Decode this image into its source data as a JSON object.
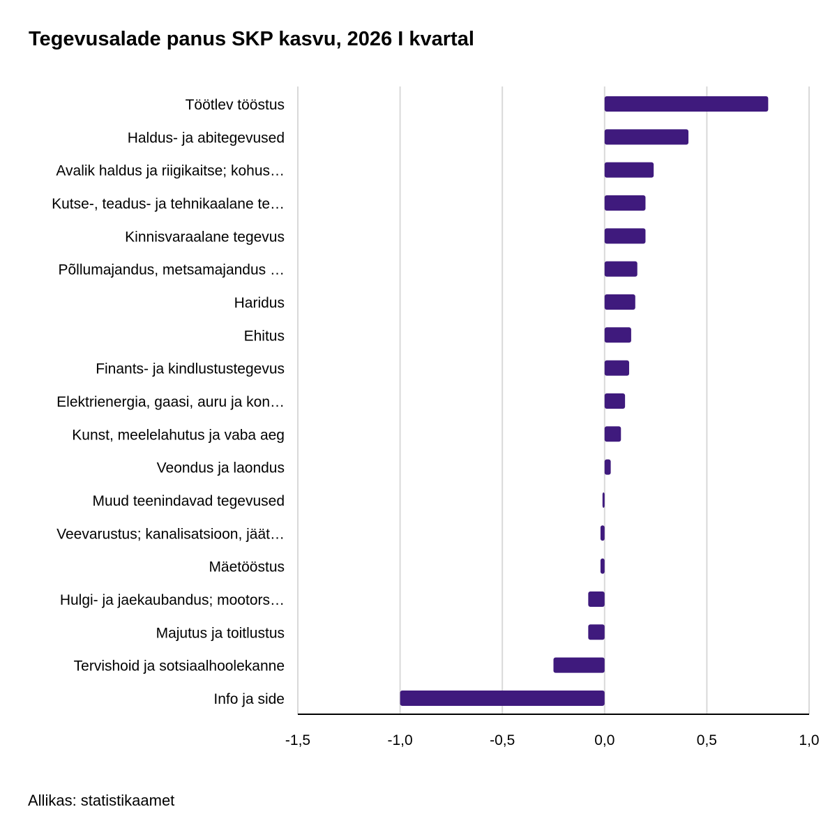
{
  "chart_data": {
    "type": "bar",
    "orientation": "horizontal",
    "title": "Tegevusalade panus SKP kasvu, 2026 I kvartal",
    "source": "Allikas: statistikaamet",
    "categories": [
      "Töötlev tööstus",
      "Haldus- ja abitegevused",
      "Avalik haldus ja riigikaitse; kohus…",
      "Kutse-, teadus- ja tehnikaalane te…",
      "Kinnisvaraalane tegevus",
      "Põllumajandus, metsamajandus …",
      "Haridus",
      "Ehitus",
      "Finants- ja kindlustustegevus",
      "Elektrienergia, gaasi, auru ja kon…",
      "Kunst, meelelahutus ja vaba aeg",
      "Veondus ja laondus",
      "Muud teenindavad tegevused",
      "Veevarustus; kanalisatsioon, jäät…",
      "Mäetööstus",
      "Hulgi- ja jaekaubandus; mootors…",
      "Majutus ja toitlustus",
      "Tervishoid ja sotsiaalhoolekanne",
      "Info ja side"
    ],
    "values": [
      0.8,
      0.41,
      0.24,
      0.2,
      0.2,
      0.16,
      0.15,
      0.13,
      0.12,
      0.1,
      0.08,
      0.03,
      -0.01,
      -0.02,
      -0.02,
      -0.08,
      -0.08,
      -0.25,
      -1.0
    ],
    "xlim": [
      -1.5,
      1.0
    ],
    "xticks": [
      -1.5,
      -1.0,
      -0.5,
      0.0,
      0.5,
      1.0
    ],
    "xtick_labels": [
      "-1,5",
      "-1,0",
      "-0,5",
      "0,0",
      "0,5",
      "1,0"
    ],
    "grid": true,
    "bar_color": "#3f1a7d",
    "grid_color": "#d9d9d9",
    "axis_color": "#000000"
  }
}
